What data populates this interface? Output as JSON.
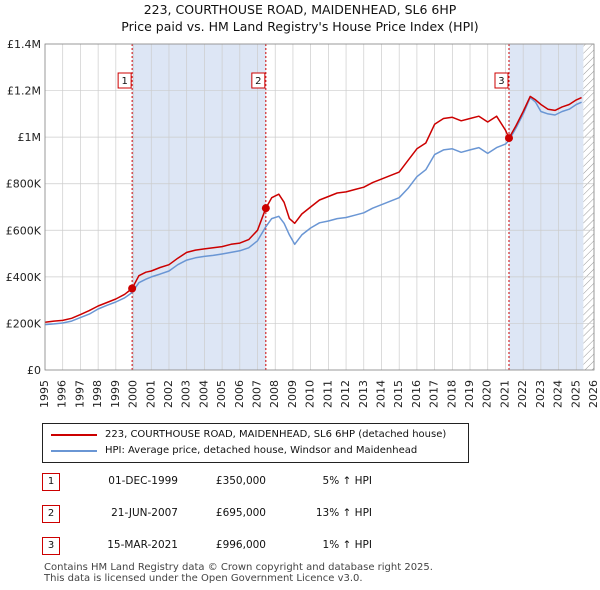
{
  "title_line1": "223, COURTHOUSE ROAD, MAIDENHEAD, SL6 6HP",
  "title_line2": "Price paid vs. HM Land Registry's House Price Index (HPI)",
  "colors": {
    "price_line": "#cc0000",
    "hpi_line": "#6a96d4",
    "marker": "#cc0000",
    "shade": "#dde6f5",
    "grid": "#cccccc",
    "vline": "#cc0000"
  },
  "chart_data": {
    "type": "line",
    "title": "Price paid vs. HM Land Registry's House Price Index (HPI)",
    "xlabel": "",
    "ylabel": "",
    "xlim": [
      1995,
      2026
    ],
    "ylim": [
      0,
      1400000
    ],
    "yticks": [
      {
        "value": 0,
        "label": "£0"
      },
      {
        "value": 200000,
        "label": "£200K"
      },
      {
        "value": 400000,
        "label": "£400K"
      },
      {
        "value": 600000,
        "label": "£600K"
      },
      {
        "value": 800000,
        "label": "£800K"
      },
      {
        "value": 1000000,
        "label": "£1M"
      },
      {
        "value": 1200000,
        "label": "£1.2M"
      },
      {
        "value": 1400000,
        "label": "£1.4M"
      }
    ],
    "xticks": [
      "1995",
      "1996",
      "1997",
      "1998",
      "1999",
      "2000",
      "2001",
      "2002",
      "2003",
      "2004",
      "2005",
      "2006",
      "2007",
      "2008",
      "2009",
      "2010",
      "2011",
      "2012",
      "2013",
      "2014",
      "2015",
      "2016",
      "2017",
      "2018",
      "2019",
      "2020",
      "2021",
      "2022",
      "2023",
      "2024",
      "2025",
      "2026"
    ],
    "shaded_regions": [
      [
        1999.92,
        2007.47
      ],
      [
        2021.2,
        2025.4
      ]
    ],
    "hatched_region": [
      2025.4,
      2026
    ],
    "series": [
      {
        "name": "223, COURTHOUSE ROAD, MAIDENHEAD, SL6 6HP (detached house)",
        "x": [
          1995,
          1995.5,
          1996,
          1996.5,
          1997,
          1997.5,
          1998,
          1998.5,
          1999,
          1999.5,
          1999.92,
          2000.3,
          2000.7,
          2001,
          2001.5,
          2002,
          2002.5,
          2003,
          2003.5,
          2004,
          2004.5,
          2005,
          2005.5,
          2006,
          2006.5,
          2007,
          2007.47,
          2007.8,
          2008.2,
          2008.5,
          2008.8,
          2009.1,
          2009.5,
          2010,
          2010.5,
          2011,
          2011.5,
          2012,
          2012.5,
          2013,
          2013.5,
          2014,
          2014.5,
          2015,
          2015.5,
          2016,
          2016.5,
          2017,
          2017.5,
          2018,
          2018.5,
          2019,
          2019.5,
          2020,
          2020.5,
          2021,
          2021.2,
          2021.6,
          2022,
          2022.4,
          2022.7,
          2023,
          2023.4,
          2023.8,
          2024.2,
          2024.6,
          2025,
          2025.3
        ],
        "values": [
          205000,
          210000,
          213000,
          222000,
          238000,
          255000,
          275000,
          290000,
          305000,
          325000,
          350000,
          405000,
          420000,
          425000,
          440000,
          452000,
          480000,
          505000,
          515000,
          520000,
          525000,
          530000,
          540000,
          545000,
          560000,
          600000,
          695000,
          740000,
          755000,
          720000,
          650000,
          630000,
          670000,
          700000,
          730000,
          745000,
          760000,
          765000,
          775000,
          785000,
          805000,
          820000,
          835000,
          850000,
          900000,
          950000,
          975000,
          1055000,
          1080000,
          1085000,
          1070000,
          1080000,
          1090000,
          1065000,
          1090000,
          1030000,
          996000,
          1050000,
          1110000,
          1175000,
          1160000,
          1140000,
          1120000,
          1115000,
          1130000,
          1140000,
          1160000,
          1170000
        ]
      },
      {
        "name": "HPI: Average price, detached house, Windsor and Maidenhead",
        "x": [
          1995,
          1995.5,
          1996,
          1996.5,
          1997,
          1997.5,
          1998,
          1998.5,
          1999,
          1999.5,
          1999.92,
          2000.3,
          2000.7,
          2001,
          2001.5,
          2002,
          2002.5,
          2003,
          2003.5,
          2004,
          2004.5,
          2005,
          2005.5,
          2006,
          2006.5,
          2007,
          2007.47,
          2007.8,
          2008.2,
          2008.5,
          2008.8,
          2009.1,
          2009.5,
          2010,
          2010.5,
          2011,
          2011.5,
          2012,
          2012.5,
          2013,
          2013.5,
          2014,
          2014.5,
          2015,
          2015.5,
          2016,
          2016.5,
          2017,
          2017.5,
          2018,
          2018.5,
          2019,
          2019.5,
          2020,
          2020.5,
          2021,
          2021.2,
          2021.6,
          2022,
          2022.4,
          2022.7,
          2023,
          2023.4,
          2023.8,
          2024.2,
          2024.6,
          2025,
          2025.3
        ],
        "values": [
          195000,
          198000,
          202000,
          210000,
          225000,
          240000,
          262000,
          278000,
          292000,
          310000,
          333000,
          375000,
          390000,
          400000,
          412000,
          425000,
          452000,
          472000,
          482000,
          488000,
          492000,
          498000,
          505000,
          512000,
          525000,
          555000,
          615000,
          650000,
          660000,
          630000,
          580000,
          540000,
          580000,
          610000,
          632000,
          640000,
          650000,
          655000,
          665000,
          675000,
          695000,
          710000,
          725000,
          740000,
          780000,
          830000,
          860000,
          925000,
          945000,
          950000,
          935000,
          945000,
          955000,
          930000,
          955000,
          970000,
          986000,
          1040000,
          1100000,
          1170000,
          1150000,
          1110000,
          1100000,
          1095000,
          1110000,
          1120000,
          1140000,
          1150000
        ]
      }
    ],
    "markers": [
      {
        "label": "1",
        "x": 1999.92,
        "y": 350000
      },
      {
        "label": "2",
        "x": 2007.47,
        "y": 695000
      },
      {
        "label": "3",
        "x": 2021.2,
        "y": 996000
      }
    ]
  },
  "legend": {
    "price_label": "223, COURTHOUSE ROAD, MAIDENHEAD, SL6 6HP (detached house)",
    "hpi_label": "HPI: Average price, detached house, Windsor and Maidenhead"
  },
  "transactions": [
    {
      "num": "1",
      "date": "01-DEC-1999",
      "price": "£350,000",
      "hpi": "5% ↑ HPI"
    },
    {
      "num": "2",
      "date": "21-JUN-2007",
      "price": "£695,000",
      "hpi": "13% ↑ HPI"
    },
    {
      "num": "3",
      "date": "15-MAR-2021",
      "price": "£996,000",
      "hpi": "1% ↑ HPI"
    }
  ],
  "footer": {
    "line1": "Contains HM Land Registry data © Crown copyright and database right 2025.",
    "line2": "This data is licensed under the Open Government Licence v3.0."
  }
}
